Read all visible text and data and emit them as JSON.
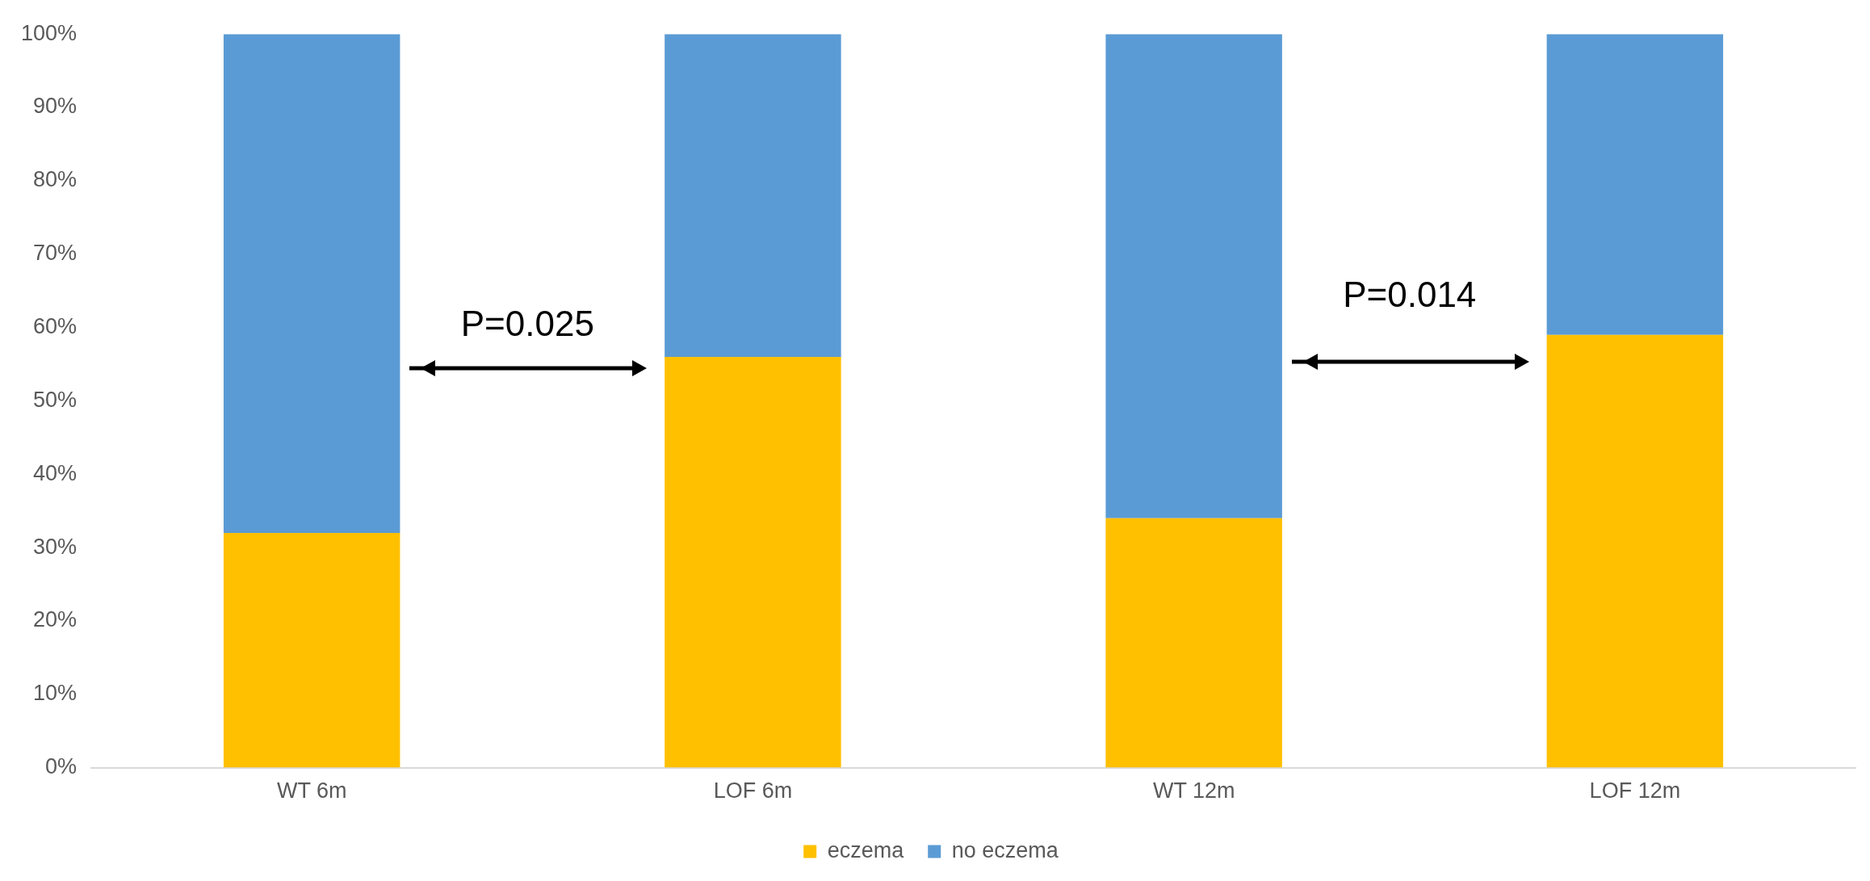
{
  "chart_data": {
    "type": "bar",
    "stacked": true,
    "categories": [
      "WT 6m",
      "LOF 6m",
      "WT 12m",
      "LOF 12m"
    ],
    "series": [
      {
        "name": "eczema",
        "color": "#ffc000",
        "values": [
          32,
          56,
          34,
          59
        ]
      },
      {
        "name": "no eczema",
        "color": "#5b9bd5",
        "values": [
          68,
          44,
          66,
          41
        ]
      }
    ],
    "ylim": [
      0,
      100
    ],
    "yticks": [
      {
        "value": 0,
        "label": "0%"
      },
      {
        "value": 10,
        "label": "10%"
      },
      {
        "value": 20,
        "label": "20%"
      },
      {
        "value": 30,
        "label": "30%"
      },
      {
        "value": 40,
        "label": "40%"
      },
      {
        "value": 50,
        "label": "50%"
      },
      {
        "value": 60,
        "label": "60%"
      },
      {
        "value": 70,
        "label": "70%"
      },
      {
        "value": 80,
        "label": "80%"
      },
      {
        "value": 90,
        "label": "90%"
      },
      {
        "value": 100,
        "label": "100%"
      }
    ],
    "grid": false,
    "legend": "bottom",
    "annotations": [
      "P=0.025",
      "P=0.014"
    ]
  }
}
